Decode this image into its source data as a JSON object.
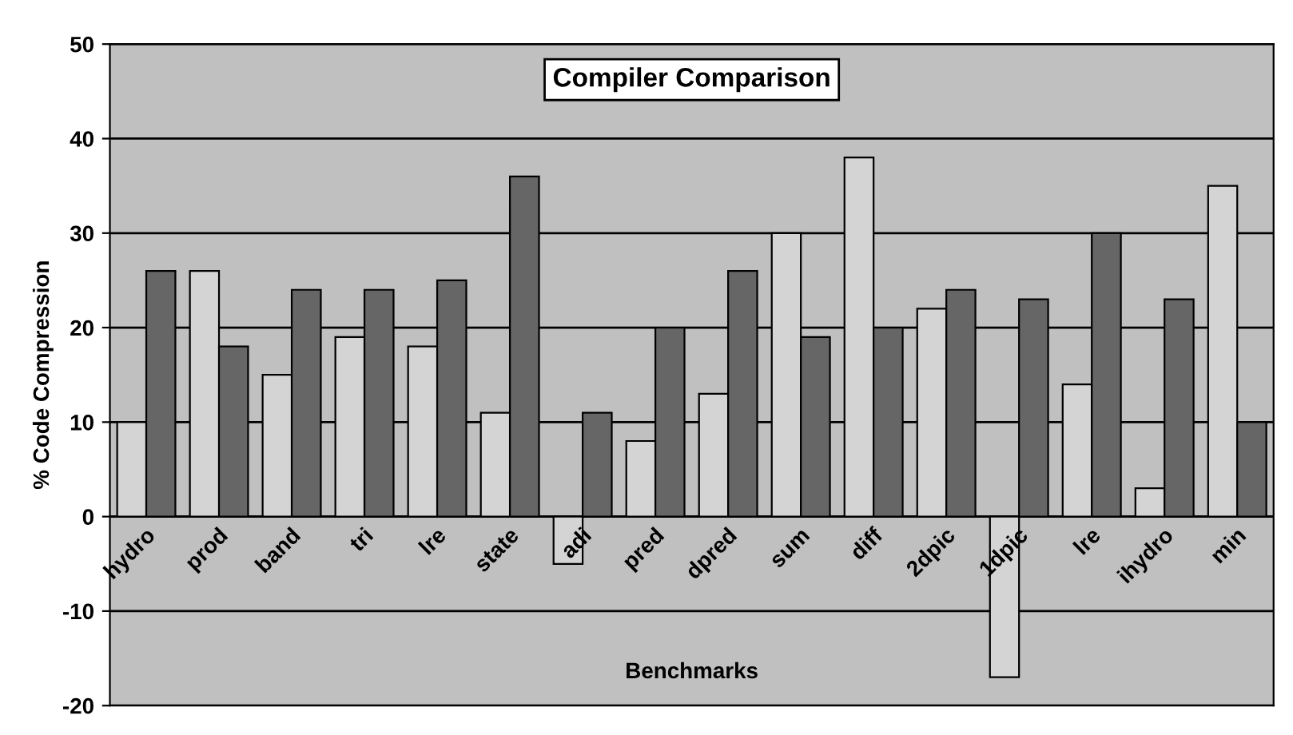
{
  "chart_data": {
    "type": "bar",
    "title": "Compiler Comparison",
    "xlabel": "Benchmarks",
    "ylabel": "% Code Compression",
    "categories": [
      "hydro",
      "prod",
      "band",
      "tri",
      "lre",
      "state",
      "adi",
      "pred",
      "dpred",
      "sum",
      "diff",
      "2dpic",
      "1dpic",
      "lre",
      "ihydro",
      "min"
    ],
    "series": [
      {
        "color": "#d4d4d4",
        "values": [
          10,
          26,
          15,
          19,
          18,
          11,
          -5,
          8,
          13,
          30,
          38,
          22,
          -17,
          14,
          3,
          35
        ]
      },
      {
        "color": "#666666",
        "values": [
          26,
          18,
          24,
          24,
          25,
          36,
          11,
          20,
          26,
          19,
          20,
          24,
          23,
          30,
          23,
          10
        ]
      }
    ],
    "ylim": [
      -20,
      50
    ],
    "yticks": [
      -20,
      -10,
      0,
      10,
      20,
      30,
      40,
      50
    ],
    "grid": "y"
  }
}
